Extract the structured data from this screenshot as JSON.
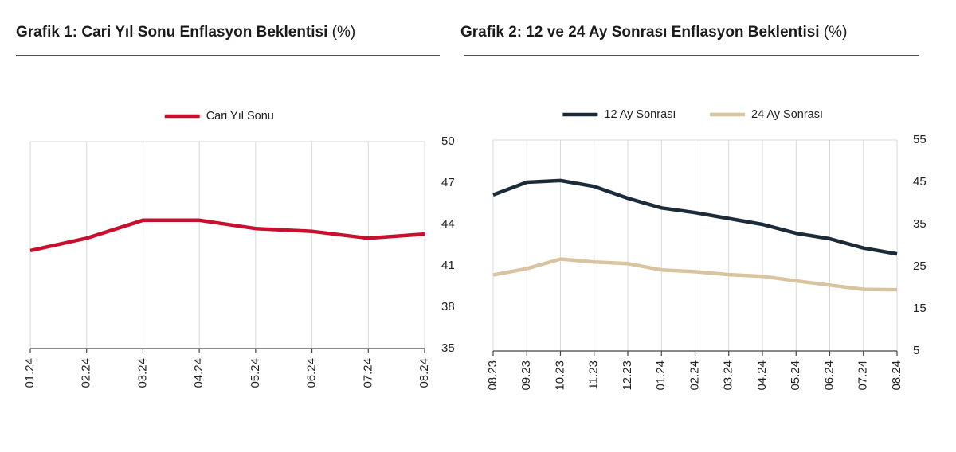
{
  "charts": [
    {
      "title_bold": "Grafik 1: Cari Yıl Sonu Enflasyon Beklentisi",
      "title_unit": "(%)"
    },
    {
      "title_bold": "Grafik 2: 12 ve 24 Ay Sonrası Enflasyon Beklentisi",
      "title_unit": "(%)"
    }
  ],
  "chart_data": [
    {
      "type": "line",
      "categories": [
        "01.24",
        "02.24",
        "03.24",
        "04.24",
        "05.24",
        "06.24",
        "07.24",
        "08.24"
      ],
      "series": [
        {
          "name": "Cari Yıl Sonu",
          "color": "#c8102e",
          "values": [
            42.1,
            43.0,
            44.3,
            44.3,
            43.7,
            43.5,
            43.0,
            43.3
          ]
        }
      ],
      "y_ticks": [
        35,
        38,
        41,
        44,
        47,
        50
      ],
      "ylim": [
        35,
        50
      ],
      "y_axis_side": "right",
      "legend_position": "top-center",
      "grid": "vertical"
    },
    {
      "type": "line",
      "categories": [
        "08.23",
        "09.23",
        "10.23",
        "11.23",
        "12.23",
        "01.24",
        "02.24",
        "03.24",
        "04.24",
        "05.24",
        "06.24",
        "07.24",
        "08.24"
      ],
      "series": [
        {
          "name": "12 Ay Sonrası",
          "color": "#1c2b39",
          "values": [
            42.0,
            45.0,
            45.4,
            44.0,
            41.2,
            38.9,
            37.8,
            36.4,
            35.0,
            32.9,
            31.6,
            29.4,
            28.0
          ]
        },
        {
          "name": "24 Ay Sonrası",
          "color": "#d8c4a0",
          "values": [
            23.0,
            24.5,
            26.8,
            26.1,
            25.7,
            24.2,
            23.8,
            23.1,
            22.7,
            21.6,
            20.6,
            19.6,
            19.5
          ]
        }
      ],
      "y_ticks": [
        5,
        15,
        25,
        35,
        45,
        55
      ],
      "ylim": [
        5,
        55
      ],
      "y_axis_side": "right",
      "legend_position": "top-center",
      "grid": "vertical"
    }
  ]
}
